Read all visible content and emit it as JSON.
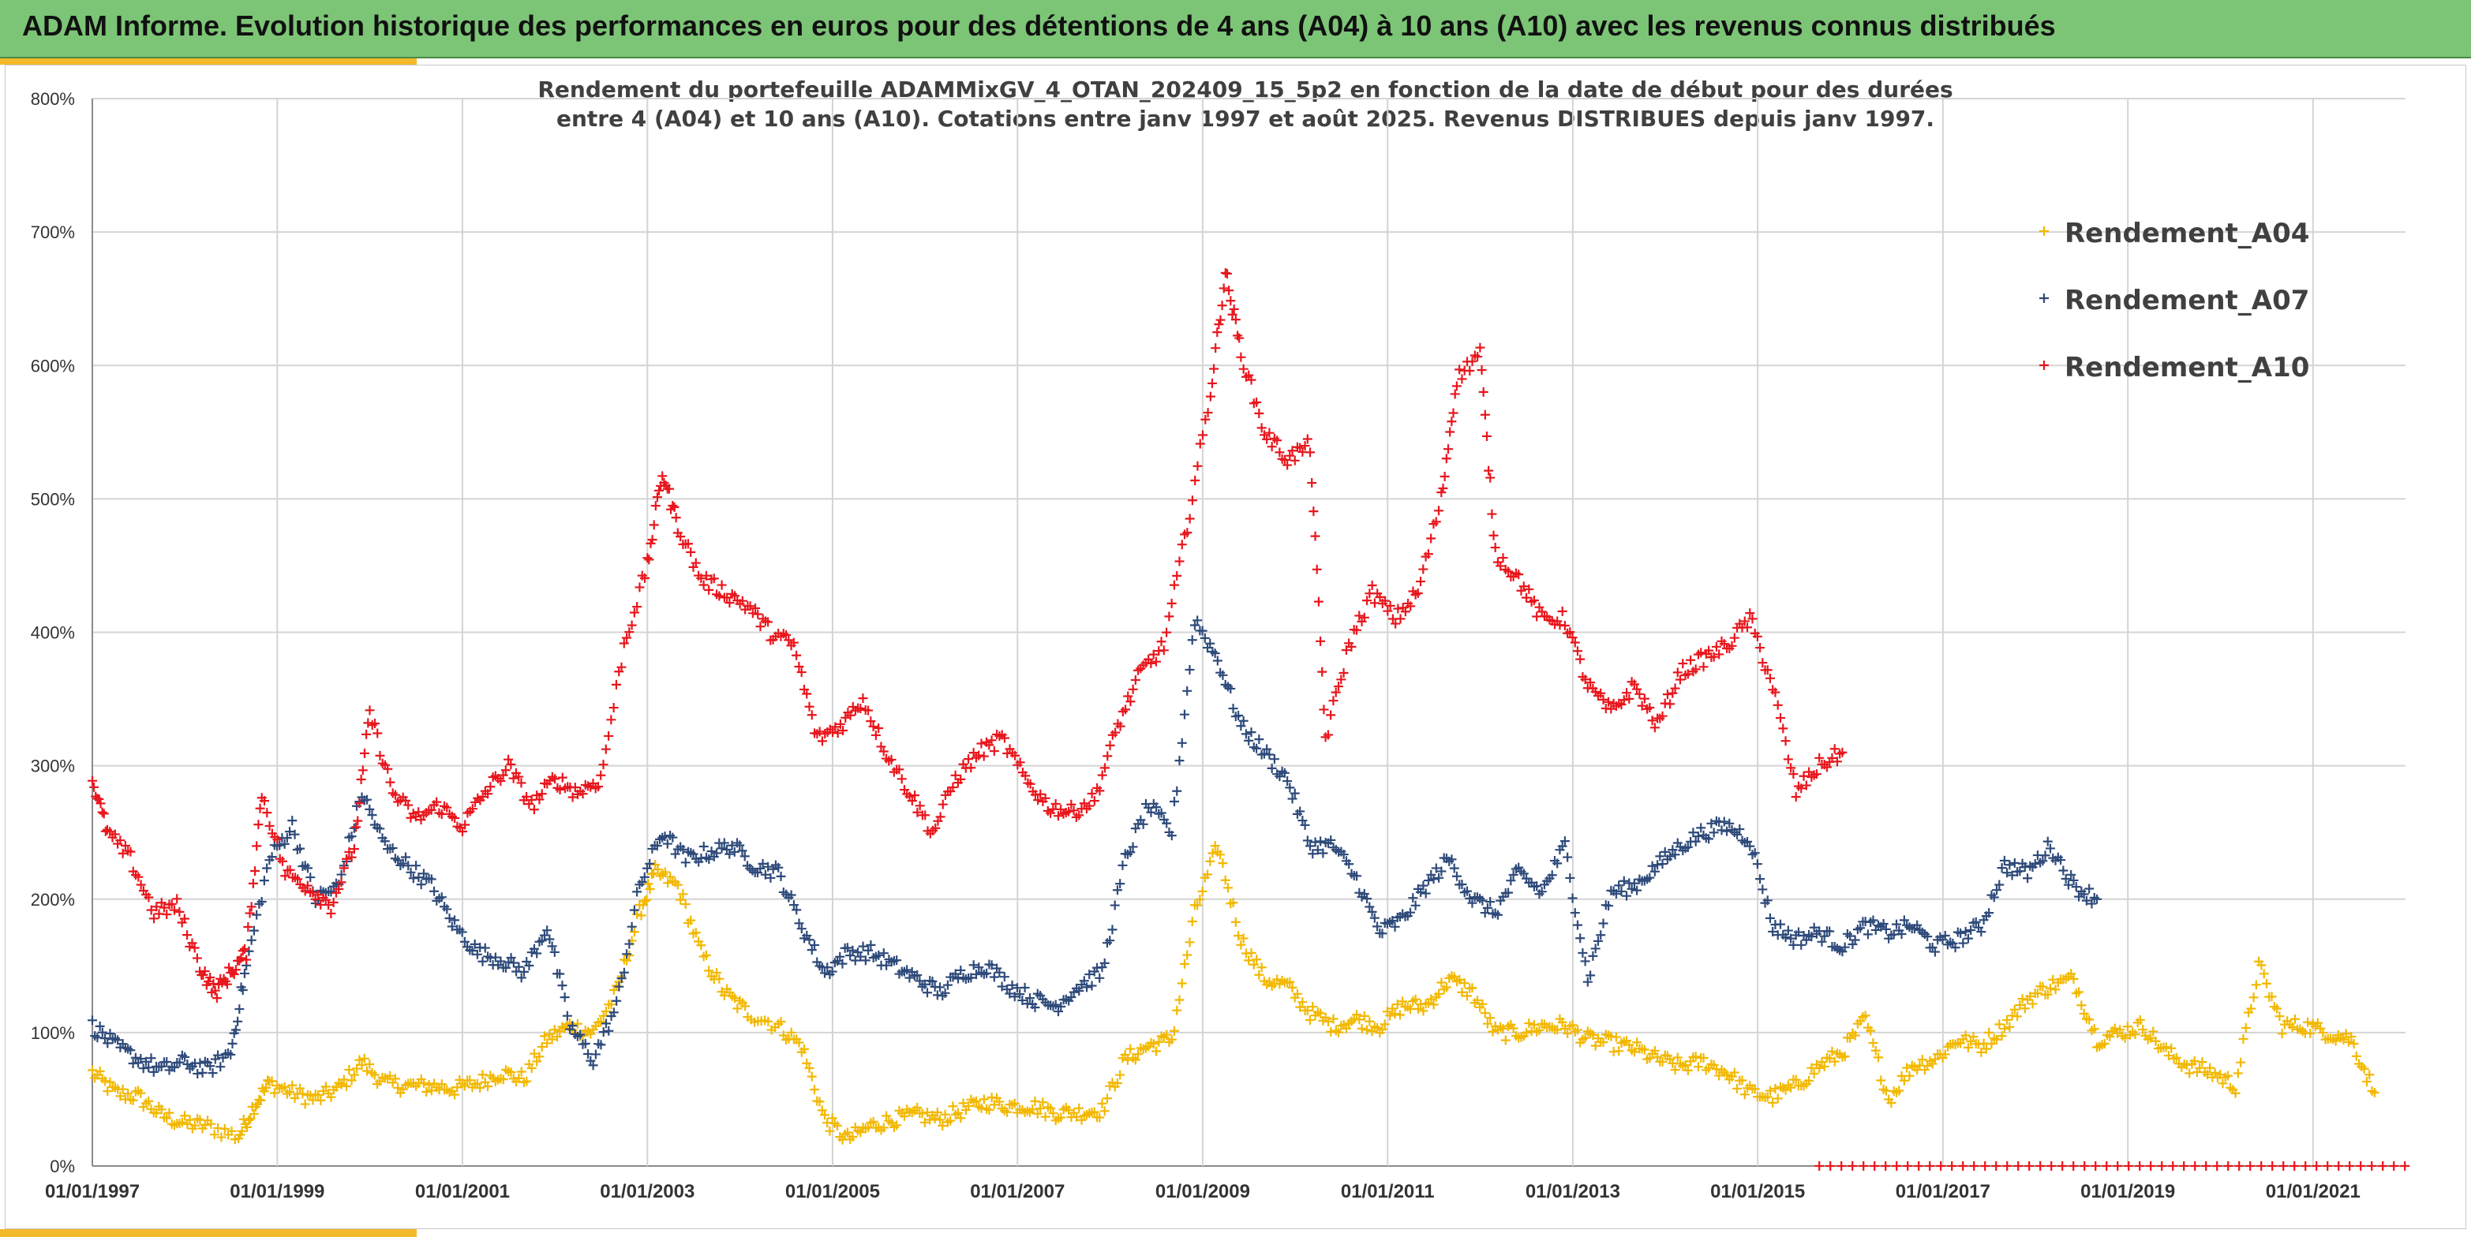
{
  "banner": {
    "title": "ADAM Informe. Evolution historique des performances en euros pour des détentions de 4 ans (A04) à 10 ans (A10) avec les revenus connus distribués"
  },
  "colors": {
    "banner_bg": "#7cc576",
    "accent": "#f2b92b",
    "A04": "#f2b800",
    "A07": "#2e4a7a",
    "A10": "#e8161c"
  },
  "chart_data": {
    "type": "scatter",
    "title_line1": "Rendement du portefeuille ADAMMixGV_4_OTAN_202409_15_5p2  en fonction de la date de début pour des durées",
    "title_line2": "entre 4 (A04) et 10 ans (A10). Cotations entre janv 1997 et août 2025. Revenus DISTRIBUES depuis janv 1997.",
    "xlabel": "",
    "ylabel": "",
    "xlim": [
      "1997-01-01",
      "2022-01-01"
    ],
    "ylim": [
      0,
      8
    ],
    "grid": true,
    "legend_position": "top-right",
    "x_ticks": [
      "01/01/1997",
      "01/01/1999",
      "01/01/2001",
      "01/01/2003",
      "01/01/2005",
      "01/01/2007",
      "01/01/2009",
      "01/01/2011",
      "01/01/2013",
      "01/01/2015",
      "01/01/2017",
      "01/01/2019",
      "01/01/2021"
    ],
    "y_ticks": [
      "0%",
      "100%",
      "200%",
      "300%",
      "400%",
      "500%",
      "600%",
      "700%",
      "800%"
    ],
    "series": [
      {
        "name": "Rendement_A04",
        "marker": "+",
        "points": [
          [
            "1997-01-01",
            0.7
          ],
          [
            "1997-04-01",
            0.55
          ],
          [
            "1997-07-01",
            0.52
          ],
          [
            "1997-10-01",
            0.38
          ],
          [
            "1998-01-01",
            0.32
          ],
          [
            "1998-04-01",
            0.3
          ],
          [
            "1998-08-01",
            0.22
          ],
          [
            "1998-10-01",
            0.45
          ],
          [
            "1998-12-01",
            0.62
          ],
          [
            "1999-03-01",
            0.55
          ],
          [
            "1999-06-01",
            0.5
          ],
          [
            "1999-09-01",
            0.58
          ],
          [
            "1999-12-01",
            0.78
          ],
          [
            "2000-03-01",
            0.62
          ],
          [
            "2000-06-01",
            0.6
          ],
          [
            "2000-09-01",
            0.6
          ],
          [
            "2000-12-01",
            0.58
          ],
          [
            "2001-03-01",
            0.62
          ],
          [
            "2001-06-01",
            0.7
          ],
          [
            "2001-09-01",
            0.65
          ],
          [
            "2001-12-01",
            0.95
          ],
          [
            "2002-03-01",
            1.05
          ],
          [
            "2002-06-01",
            1.0
          ],
          [
            "2002-09-01",
            1.3
          ],
          [
            "2002-12-01",
            1.9
          ],
          [
            "2003-02-01",
            2.2
          ],
          [
            "2003-05-01",
            2.1
          ],
          [
            "2003-08-01",
            1.6
          ],
          [
            "2003-11-01",
            1.3
          ],
          [
            "2004-02-01",
            1.15
          ],
          [
            "2004-06-01",
            1.05
          ],
          [
            "2004-09-01",
            0.9
          ],
          [
            "2004-12-01",
            0.35
          ],
          [
            "2005-03-01",
            0.2
          ],
          [
            "2005-06-01",
            0.3
          ],
          [
            "2005-09-01",
            0.35
          ],
          [
            "2005-12-01",
            0.38
          ],
          [
            "2006-03-01",
            0.35
          ],
          [
            "2006-06-01",
            0.42
          ],
          [
            "2006-09-01",
            0.48
          ],
          [
            "2006-12-01",
            0.45
          ],
          [
            "2007-03-01",
            0.45
          ],
          [
            "2007-06-01",
            0.4
          ],
          [
            "2007-09-01",
            0.4
          ],
          [
            "2007-12-01",
            0.42
          ],
          [
            "2008-03-01",
            0.8
          ],
          [
            "2008-06-01",
            0.9
          ],
          [
            "2008-09-01",
            0.95
          ],
          [
            "2008-12-01",
            1.9
          ],
          [
            "2009-03-01",
            2.4
          ],
          [
            "2009-06-01",
            1.7
          ],
          [
            "2009-09-01",
            1.4
          ],
          [
            "2009-12-01",
            1.35
          ],
          [
            "2010-03-01",
            1.15
          ],
          [
            "2010-06-01",
            1.05
          ],
          [
            "2010-09-01",
            1.1
          ],
          [
            "2010-12-01",
            1.05
          ],
          [
            "2011-03-01",
            1.2
          ],
          [
            "2011-06-01",
            1.2
          ],
          [
            "2011-09-01",
            1.4
          ],
          [
            "2011-12-01",
            1.3
          ],
          [
            "2012-03-01",
            1.0
          ],
          [
            "2012-06-01",
            1.0
          ],
          [
            "2012-09-01",
            1.05
          ],
          [
            "2012-12-01",
            1.05
          ],
          [
            "2013-03-01",
            0.95
          ],
          [
            "2013-06-01",
            0.92
          ],
          [
            "2013-09-01",
            0.88
          ],
          [
            "2013-12-01",
            0.8
          ],
          [
            "2014-03-01",
            0.75
          ],
          [
            "2014-06-01",
            0.78
          ],
          [
            "2014-09-01",
            0.7
          ],
          [
            "2014-12-01",
            0.55
          ],
          [
            "2015-03-01",
            0.52
          ],
          [
            "2015-06-01",
            0.6
          ],
          [
            "2015-09-01",
            0.75
          ],
          [
            "2015-12-01",
            0.85
          ],
          [
            "2016-03-01",
            1.1
          ],
          [
            "2016-06-01",
            0.5
          ],
          [
            "2016-09-01",
            0.75
          ],
          [
            "2016-12-01",
            0.8
          ],
          [
            "2017-03-01",
            0.95
          ],
          [
            "2017-06-01",
            0.9
          ],
          [
            "2017-09-01",
            1.05
          ],
          [
            "2017-12-01",
            1.25
          ],
          [
            "2018-03-01",
            1.35
          ],
          [
            "2018-06-01",
            1.4
          ],
          [
            "2018-09-01",
            0.95
          ],
          [
            "2018-12-01",
            1.0
          ],
          [
            "2019-03-01",
            1.05
          ],
          [
            "2019-06-01",
            0.85
          ],
          [
            "2019-09-01",
            0.75
          ],
          [
            "2019-12-01",
            0.7
          ],
          [
            "2020-03-01",
            0.6
          ],
          [
            "2020-06-01",
            1.5
          ],
          [
            "2020-09-01",
            1.05
          ],
          [
            "2020-12-01",
            1.05
          ],
          [
            "2021-03-01",
            1.0
          ],
          [
            "2021-06-01",
            0.95
          ],
          [
            "2021-09-01",
            0.55
          ]
        ]
      },
      {
        "name": "Rendement_A07",
        "marker": "+",
        "points": [
          [
            "1997-01-01",
            1.05
          ],
          [
            "1997-04-01",
            0.9
          ],
          [
            "1997-07-01",
            0.8
          ],
          [
            "1997-10-01",
            0.72
          ],
          [
            "1998-01-01",
            0.78
          ],
          [
            "1998-04-01",
            0.72
          ],
          [
            "1998-07-01",
            0.85
          ],
          [
            "1998-09-01",
            1.5
          ],
          [
            "1998-12-01",
            2.3
          ],
          [
            "1999-03-01",
            2.55
          ],
          [
            "1999-06-01",
            2.0
          ],
          [
            "1999-09-01",
            2.1
          ],
          [
            "1999-12-01",
            2.8
          ],
          [
            "2000-03-01",
            2.4
          ],
          [
            "2000-06-01",
            2.25
          ],
          [
            "2000-09-01",
            2.1
          ],
          [
            "2000-12-01",
            1.8
          ],
          [
            "2001-03-01",
            1.6
          ],
          [
            "2001-06-01",
            1.55
          ],
          [
            "2001-09-01",
            1.45
          ],
          [
            "2001-12-01",
            1.8
          ],
          [
            "2002-03-01",
            1.05
          ],
          [
            "2002-06-01",
            0.8
          ],
          [
            "2002-09-01",
            1.2
          ],
          [
            "2002-12-01",
            2.1
          ],
          [
            "2003-03-01",
            2.5
          ],
          [
            "2003-06-01",
            2.3
          ],
          [
            "2003-09-01",
            2.35
          ],
          [
            "2003-12-01",
            2.4
          ],
          [
            "2004-03-01",
            2.25
          ],
          [
            "2004-06-01",
            2.2
          ],
          [
            "2004-09-01",
            1.8
          ],
          [
            "2004-12-01",
            1.45
          ],
          [
            "2005-03-01",
            1.6
          ],
          [
            "2005-06-01",
            1.6
          ],
          [
            "2005-09-01",
            1.5
          ],
          [
            "2005-12-01",
            1.4
          ],
          [
            "2006-03-01",
            1.3
          ],
          [
            "2006-06-01",
            1.45
          ],
          [
            "2006-09-01",
            1.5
          ],
          [
            "2006-12-01",
            1.35
          ],
          [
            "2007-03-01",
            1.25
          ],
          [
            "2007-06-01",
            1.2
          ],
          [
            "2007-09-01",
            1.35
          ],
          [
            "2007-12-01",
            1.45
          ],
          [
            "2008-03-01",
            2.3
          ],
          [
            "2008-06-01",
            2.7
          ],
          [
            "2008-09-01",
            2.5
          ],
          [
            "2008-12-01",
            4.1
          ],
          [
            "2009-03-01",
            3.8
          ],
          [
            "2009-06-01",
            3.3
          ],
          [
            "2009-09-01",
            3.1
          ],
          [
            "2009-12-01",
            2.9
          ],
          [
            "2010-03-01",
            2.4
          ],
          [
            "2010-06-01",
            2.4
          ],
          [
            "2010-09-01",
            2.15
          ],
          [
            "2010-12-01",
            1.75
          ],
          [
            "2011-03-01",
            1.85
          ],
          [
            "2011-06-01",
            2.1
          ],
          [
            "2011-09-01",
            2.3
          ],
          [
            "2011-12-01",
            2.0
          ],
          [
            "2012-03-01",
            1.9
          ],
          [
            "2012-06-01",
            2.2
          ],
          [
            "2012-09-01",
            2.05
          ],
          [
            "2012-12-01",
            2.4
          ],
          [
            "2013-03-01",
            1.4
          ],
          [
            "2013-06-01",
            2.05
          ],
          [
            "2013-09-01",
            2.1
          ],
          [
            "2013-12-01",
            2.25
          ],
          [
            "2014-03-01",
            2.4
          ],
          [
            "2014-06-01",
            2.5
          ],
          [
            "2014-09-01",
            2.55
          ],
          [
            "2014-12-01",
            2.45
          ],
          [
            "2015-03-01",
            1.8
          ],
          [
            "2015-06-01",
            1.7
          ],
          [
            "2015-09-01",
            1.75
          ],
          [
            "2015-12-01",
            1.65
          ],
          [
            "2016-03-01",
            1.8
          ],
          [
            "2016-06-01",
            1.75
          ],
          [
            "2016-09-01",
            1.8
          ],
          [
            "2016-12-01",
            1.65
          ],
          [
            "2017-03-01",
            1.7
          ],
          [
            "2017-06-01",
            1.8
          ],
          [
            "2017-09-01",
            2.25
          ],
          [
            "2017-12-01",
            2.2
          ],
          [
            "2018-03-01",
            2.4
          ],
          [
            "2018-06-01",
            2.1
          ],
          [
            "2018-09-01",
            2.0
          ]
        ]
      },
      {
        "name": "Rendement_A10",
        "marker": "+",
        "points": [
          [
            "1997-01-01",
            2.9
          ],
          [
            "1997-03-01",
            2.5
          ],
          [
            "1997-06-01",
            2.3
          ],
          [
            "1997-09-01",
            1.9
          ],
          [
            "1997-12-01",
            1.95
          ],
          [
            "1998-03-01",
            1.5
          ],
          [
            "1998-05-01",
            1.3
          ],
          [
            "1998-07-01",
            1.45
          ],
          [
            "1998-09-01",
            1.6
          ],
          [
            "1998-11-01",
            2.8
          ],
          [
            "1999-02-01",
            2.2
          ],
          [
            "1999-05-01",
            2.1
          ],
          [
            "1999-08-01",
            1.95
          ],
          [
            "1999-11-01",
            2.4
          ],
          [
            "2000-01-01",
            3.4
          ],
          [
            "2000-04-01",
            2.8
          ],
          [
            "2000-07-01",
            2.6
          ],
          [
            "2000-10-01",
            2.7
          ],
          [
            "2001-01-01",
            2.55
          ],
          [
            "2001-04-01",
            2.8
          ],
          [
            "2001-07-01",
            3.0
          ],
          [
            "2001-10-01",
            2.7
          ],
          [
            "2002-01-01",
            2.9
          ],
          [
            "2002-04-01",
            2.8
          ],
          [
            "2002-07-01",
            2.9
          ],
          [
            "2002-10-01",
            3.9
          ],
          [
            "2003-01-01",
            4.5
          ],
          [
            "2003-03-01",
            5.2
          ],
          [
            "2003-05-01",
            4.8
          ],
          [
            "2003-08-01",
            4.4
          ],
          [
            "2003-11-01",
            4.3
          ],
          [
            "2004-02-01",
            4.2
          ],
          [
            "2004-05-01",
            4.0
          ],
          [
            "2004-08-01",
            3.9
          ],
          [
            "2004-11-01",
            3.2
          ],
          [
            "2005-02-01",
            3.3
          ],
          [
            "2005-05-01",
            3.5
          ],
          [
            "2005-08-01",
            3.1
          ],
          [
            "2005-11-01",
            2.8
          ],
          [
            "2006-02-01",
            2.5
          ],
          [
            "2006-05-01",
            2.9
          ],
          [
            "2006-08-01",
            3.1
          ],
          [
            "2006-11-01",
            3.2
          ],
          [
            "2007-02-01",
            2.9
          ],
          [
            "2007-05-01",
            2.7
          ],
          [
            "2007-08-01",
            2.65
          ],
          [
            "2007-11-01",
            2.75
          ],
          [
            "2008-02-01",
            3.3
          ],
          [
            "2008-05-01",
            3.7
          ],
          [
            "2008-08-01",
            3.9
          ],
          [
            "2008-11-01",
            4.8
          ],
          [
            "2009-02-01",
            5.8
          ],
          [
            "2009-04-01",
            6.7
          ],
          [
            "2009-06-01",
            6.1
          ],
          [
            "2009-09-01",
            5.5
          ],
          [
            "2009-12-01",
            5.3
          ],
          [
            "2010-03-01",
            5.4
          ],
          [
            "2010-05-01",
            3.2
          ],
          [
            "2010-08-01",
            3.9
          ],
          [
            "2010-11-01",
            4.3
          ],
          [
            "2011-02-01",
            4.1
          ],
          [
            "2011-05-01",
            4.3
          ],
          [
            "2011-08-01",
            5.0
          ],
          [
            "2011-10-01",
            5.9
          ],
          [
            "2012-01-01",
            6.1
          ],
          [
            "2012-03-01",
            4.6
          ],
          [
            "2012-06-01",
            4.4
          ],
          [
            "2012-09-01",
            4.1
          ],
          [
            "2012-12-01",
            4.1
          ],
          [
            "2013-03-01",
            3.6
          ],
          [
            "2013-06-01",
            3.4
          ],
          [
            "2013-09-01",
            3.6
          ],
          [
            "2013-12-01",
            3.3
          ],
          [
            "2014-03-01",
            3.7
          ],
          [
            "2014-06-01",
            3.8
          ],
          [
            "2014-09-01",
            3.9
          ],
          [
            "2014-12-01",
            4.1
          ],
          [
            "2015-03-01",
            3.6
          ],
          [
            "2015-06-01",
            2.8
          ],
          [
            "2015-09-01",
            3.0
          ],
          [
            "2015-12-01",
            3.1
          ]
        ]
      },
      {
        "name": "Rendement_A10",
        "marker": "+",
        "note_only_visible_as_baseline": true,
        "points_zero_from": "2015-09-01",
        "points_zero_to": "2022-01-01",
        "value": 0
      }
    ]
  }
}
